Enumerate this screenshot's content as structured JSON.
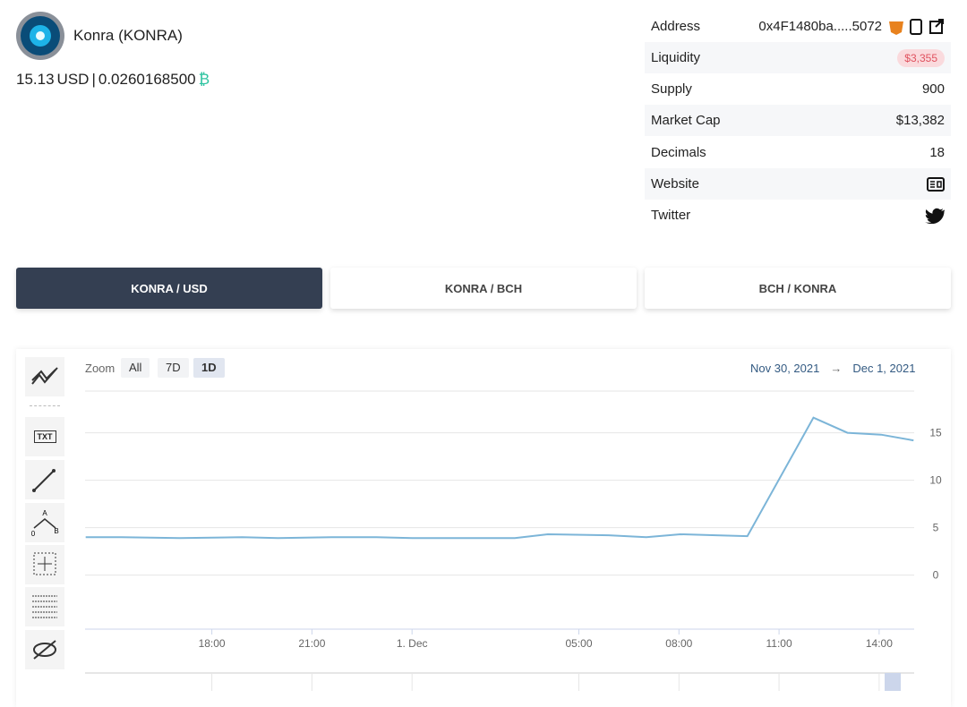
{
  "header": {
    "name": "Konra (KONRA)",
    "price": "15.13",
    "price_unit": "USD",
    "separator": "|",
    "bch_price": "0.0260168500",
    "bch_symbol": "₿"
  },
  "info": {
    "rows": [
      {
        "label": "Address",
        "value": "0x4F1480ba.....5072"
      },
      {
        "label": "Liquidity",
        "value": "$3,355"
      },
      {
        "label": "Supply",
        "value": 900
      },
      {
        "label": "Market Cap",
        "value": "$13,382"
      },
      {
        "label": "Decimals",
        "value": 18
      },
      {
        "label": "Website"
      },
      {
        "label": "Twitter"
      }
    ]
  },
  "tabs": [
    "KONRA / USD",
    "KONRA / BCH",
    "BCH / KONRA"
  ],
  "toolbar": {
    "zoom_label": "Zoom",
    "zoom_options": [
      "All",
      "7D",
      "1D"
    ],
    "range_from": "Nov 30, 2021",
    "range_arrow": "→",
    "range_to": "Dec 1, 2021",
    "text_tool": "TXT",
    "pattern_labels": [
      "A",
      "0",
      "B"
    ]
  },
  "chart_data": {
    "type": "line",
    "color": "#7cb5d8",
    "x": [
      14.22,
      15.29,
      17.04,
      18.91,
      19.98,
      21.59,
      22.93,
      24.0,
      25.61,
      27.08,
      28.07,
      29.89,
      31.02,
      32.04,
      33.11,
      34.05,
      36.03,
      37.05,
      38.06,
      39.03
    ],
    "values": [
      4.0,
      4.0,
      3.9,
      4.0,
      3.9,
      4.0,
      4.0,
      3.9,
      3.9,
      3.9,
      4.3,
      4.2,
      4.0,
      4.3,
      4.2,
      4.1,
      16.6,
      15.0,
      14.8,
      14.2
    ],
    "xlim": [
      14.2,
      39.05
    ],
    "xticks": [
      {
        "value": 18,
        "label": "18:00"
      },
      {
        "value": 21,
        "label": "21:00"
      },
      {
        "value": 24,
        "label": "1. Dec"
      },
      {
        "value": 29,
        "label": "05:00"
      },
      {
        "value": 32,
        "label": "08:00"
      },
      {
        "value": 35,
        "label": "11:00"
      },
      {
        "value": 38,
        "label": "14:00"
      }
    ],
    "ylim": [
      -5.7,
      19.4
    ],
    "yticks": [
      0,
      5,
      10,
      15
    ],
    "grid": true
  }
}
